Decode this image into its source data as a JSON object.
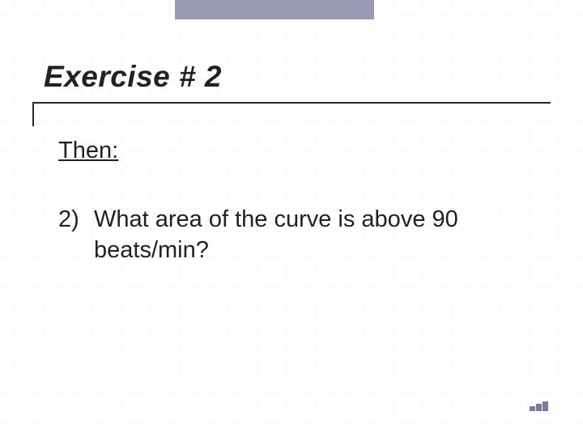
{
  "slide": {
    "title": "Exercise # 2",
    "subheading": "Then:",
    "question_number": "2)",
    "question_line1": "What area of the curve is above 90",
    "question_line2": "beats/min?"
  },
  "style": {
    "accent_color": "#9999b3",
    "text_color": "#212121",
    "rule_color": "#2a2a2a",
    "title_font_size_pt": 28,
    "body_font_size_pt": 22,
    "background_color": "#ffffff",
    "dot_color": "#d0d0d0"
  }
}
